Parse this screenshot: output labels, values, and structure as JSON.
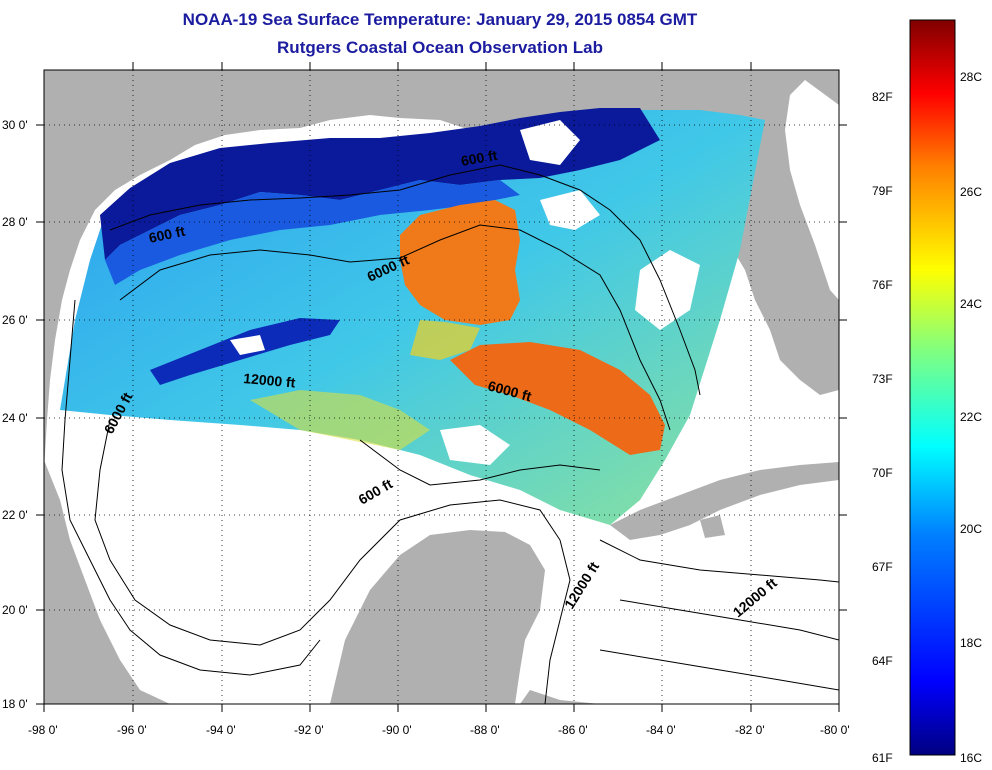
{
  "title_line1": "NOAA-19 Sea Surface Temperature:  January 29, 2015 0854 GMT",
  "title_line2": "Rutgers Coastal Ocean Observation Lab",
  "lat_ticks": [
    "30 0'",
    "28 0'",
    "26 0'",
    "24 0'",
    "22 0'",
    "20 0'",
    "18 0'"
  ],
  "lon_ticks": [
    "-98 0'",
    "-96 0'",
    "-94 0'",
    "-92 0'",
    "-90 0'",
    "-88 0'",
    "-86 0'",
    "-84 0'",
    "-82 0'",
    "-80 0'"
  ],
  "contour_labels": [
    {
      "id": "c600-north",
      "text": "600 ft"
    },
    {
      "id": "c600-west",
      "text": "600 ft"
    },
    {
      "id": "c6000-center",
      "text": "6000 ft"
    },
    {
      "id": "c6000-west",
      "text": "6000 ft"
    },
    {
      "id": "c12000-center",
      "text": "12000 ft"
    },
    {
      "id": "c6000-east",
      "text": "6000 ft"
    },
    {
      "id": "c600-south",
      "text": "600 ft"
    },
    {
      "id": "c12000-yucatan",
      "text": "12000 ft"
    },
    {
      "id": "c12000-caribbean",
      "text": "12000 ft"
    }
  ],
  "colorbar": {
    "fahrenheit": [
      "82F",
      "79F",
      "76F",
      "73F",
      "70F",
      "67F",
      "64F",
      "61F"
    ],
    "celsius": [
      "28C",
      "26C",
      "24C",
      "22C",
      "20C",
      "18C",
      "16C"
    ],
    "colors": [
      "#000080",
      "#0000ff",
      "#0080ff",
      "#00ffff",
      "#80ff80",
      "#ffff00",
      "#ff8000",
      "#ff0000",
      "#800000"
    ]
  },
  "colors": {
    "land": "#b0b0b0",
    "title": "#1c1ca0",
    "warm_core": "#f07a1a",
    "coastal_cold": "#0a1a9a"
  }
}
